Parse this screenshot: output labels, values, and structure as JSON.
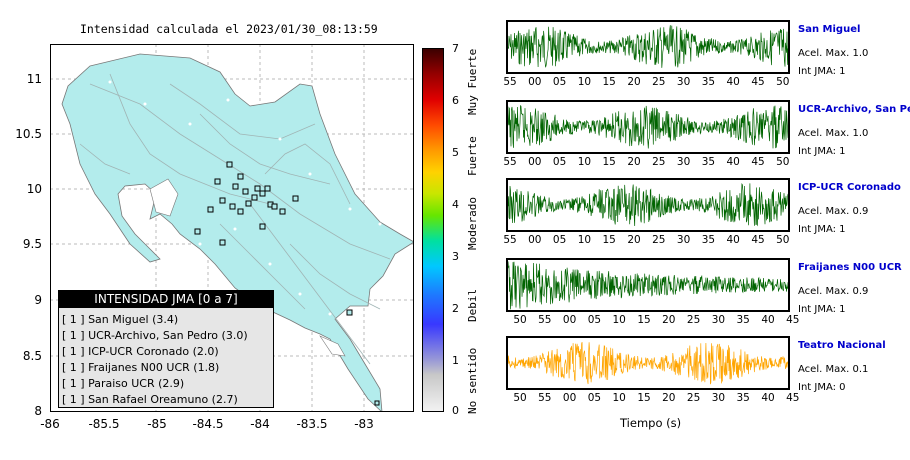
{
  "map": {
    "title": "Intensidad calculada el 2023/01/30_08:13:59",
    "y_ticks": [
      "11",
      "10.5",
      "10",
      "9.5",
      "9",
      "8.5",
      "8"
    ],
    "x_ticks": [
      "-86",
      "-85.5",
      "-85",
      "-84.5",
      "-84",
      "-83.5",
      "-83"
    ],
    "ocean_color": "#ffffff",
    "land_color": "#b3ecec"
  },
  "legend": {
    "title": "INTENSIDAD JMA [0 a 7]",
    "items": [
      "[ 1 ] San Miguel (3.4)",
      "[ 1 ] UCR-Archivo, San Pedro (3.0)",
      "[ 1 ] ICP-UCR Coronado (2.0)",
      "[ 1 ] Fraijanes N00 UCR (1.8)",
      "[ 1 ] Paraiso UCR (2.9)",
      "[ 1 ] San Rafael Oreamuno (2.7)"
    ]
  },
  "colorbar": {
    "ticks": [
      "7",
      "6",
      "5",
      "4",
      "3",
      "2",
      "1",
      "0"
    ],
    "labels": [
      "Muy Fuerte",
      "Fuerte",
      "Moderado",
      "Debil",
      "No sentido"
    ]
  },
  "stations": [
    {
      "name": "San Miguel",
      "acel": "Acel. Max. 1.0",
      "int": "Int JMA: 1",
      "color": "#006400",
      "ticks": [
        "55",
        "00",
        "05",
        "10",
        "15",
        "20",
        "25",
        "30",
        "35",
        "40",
        "45",
        "50"
      ]
    },
    {
      "name": "UCR-Archivo, San Pedro",
      "acel": "Acel. Max. 1.0",
      "int": "Int JMA: 1",
      "color": "#006400",
      "ticks": [
        "55",
        "00",
        "05",
        "10",
        "15",
        "20",
        "25",
        "30",
        "35",
        "40",
        "45",
        "50"
      ]
    },
    {
      "name": "ICP-UCR Coronado",
      "acel": "Acel. Max. 0.9",
      "int": "Int JMA: 1",
      "color": "#006400",
      "ticks": [
        "55",
        "00",
        "05",
        "10",
        "15",
        "20",
        "25",
        "30",
        "35",
        "40",
        "45",
        "50"
      ]
    },
    {
      "name": "Fraijanes N00 UCR",
      "acel": "Acel. Max. 0.9",
      "int": "Int JMA: 1",
      "color": "#006400",
      "ticks": [
        "50",
        "55",
        "00",
        "05",
        "10",
        "15",
        "20",
        "25",
        "30",
        "35",
        "40",
        "45"
      ]
    },
    {
      "name": "Teatro Nacional",
      "acel": "Acel. Max. 0.1",
      "int": "Int JMA: 0",
      "color": "#ffa500",
      "ticks": [
        "50",
        "55",
        "00",
        "05",
        "10",
        "15",
        "20",
        "25",
        "30",
        "35",
        "40",
        "45"
      ]
    }
  ],
  "waveform_xlabel": "Tiempo (s)"
}
